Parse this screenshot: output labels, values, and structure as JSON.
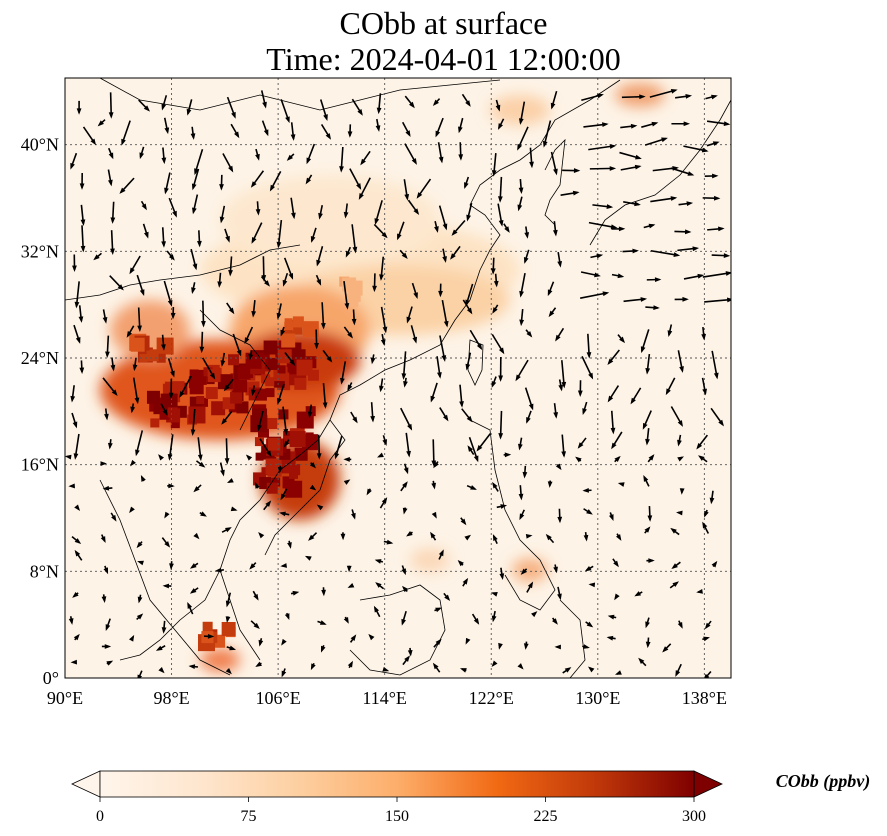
{
  "title": {
    "line1": "CObb at surface",
    "line2": "Time: 2024-04-01 12:00:00"
  },
  "map": {
    "lon_range": [
      90,
      140
    ],
    "lat_range": [
      0,
      45
    ],
    "lon_ticks": [
      "90°E",
      "98°E",
      "106°E",
      "114°E",
      "122°E",
      "130°E",
      "138°E"
    ],
    "lat_ticks": [
      "0°",
      "8°N",
      "16°N",
      "24°N",
      "32°N",
      "40°N"
    ],
    "lon_tick_values": [
      90,
      98,
      106,
      114,
      122,
      130,
      138
    ],
    "lat_tick_values": [
      0,
      8,
      16,
      24,
      32,
      40
    ],
    "gridlines": true,
    "wind_vectors": true,
    "field": "CObb surface concentration",
    "hotspots_lonlat": [
      {
        "lon": 98.5,
        "lat": 20.5,
        "level": "high"
      },
      {
        "lon": 101.5,
        "lat": 21.5,
        "level": "high"
      },
      {
        "lon": 104.5,
        "lat": 22.5,
        "level": "high"
      },
      {
        "lon": 107,
        "lat": 23.5,
        "level": "high"
      },
      {
        "lon": 106,
        "lat": 15.5,
        "level": "high"
      },
      {
        "lon": 106.5,
        "lat": 18.5,
        "level": "high"
      },
      {
        "lon": 107.5,
        "lat": 26,
        "level": "medium"
      },
      {
        "lon": 111,
        "lat": 29,
        "level": "low"
      },
      {
        "lon": 96.5,
        "lat": 24.5,
        "level": "medium"
      },
      {
        "lon": 101.5,
        "lat": 3.2,
        "level": "medium"
      }
    ]
  },
  "colorbar": {
    "label": "CObb (ppbv)",
    "min": 0,
    "max": 300,
    "ticks": [
      "0",
      "75",
      "150",
      "225",
      "300"
    ],
    "tick_values": [
      0,
      75,
      150,
      225,
      300
    ],
    "extend": "both",
    "colormap": [
      "#fff5eb",
      "#fdd9a8",
      "#fdae6b",
      "#f16913",
      "#d94801",
      "#a63603",
      "#7f0000"
    ]
  }
}
